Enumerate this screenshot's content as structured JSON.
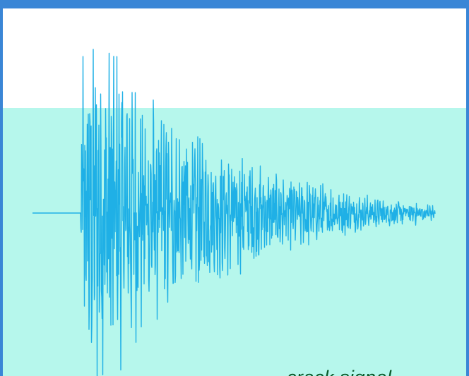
{
  "caption": "crack signal",
  "colors": {
    "frame": "#3a86d6",
    "panel_top": "#ffffff",
    "panel_band": "#b6f7ec",
    "signal": "#1fb0e6",
    "caption": "#0a5a2a"
  },
  "chart_data": {
    "type": "line",
    "title": "",
    "xlabel": "",
    "ylabel": "",
    "grid": false,
    "legend": "none",
    "x_range": [
      0,
      570
    ],
    "ylim": [
      -1,
      1
    ],
    "onset_x": 68,
    "series": [
      {
        "name": "",
        "description_free": true,
        "envelope_keypoints": [
          {
            "x": 0,
            "amp": 0.0
          },
          {
            "x": 68,
            "amp": 0.0
          },
          {
            "x": 70,
            "amp": 1.0
          },
          {
            "x": 120,
            "amp": 0.88
          },
          {
            "x": 180,
            "amp": 0.58
          },
          {
            "x": 260,
            "amp": 0.36
          },
          {
            "x": 360,
            "amp": 0.22
          },
          {
            "x": 460,
            "amp": 0.1
          },
          {
            "x": 570,
            "amp": 0.05
          }
        ]
      }
    ]
  }
}
